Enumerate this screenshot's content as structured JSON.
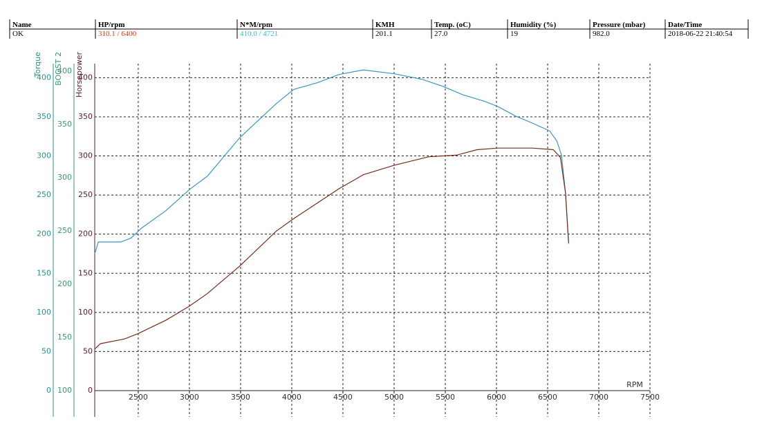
{
  "header": {
    "columns": [
      "Name",
      "HP/rpm",
      "N*M/rpm",
      "KMH",
      "Temp. (oC)",
      "Humidity (%)",
      "Pressure (mbar)",
      "Date/Time"
    ],
    "values": [
      "OK",
      "310.1 / 6400",
      "410.0 / 4721",
      "201.1",
      "27.0",
      "19",
      "982.0",
      "2018-06-22 21:40:54"
    ]
  },
  "chart_data": {
    "type": "line",
    "x_label": "RPM",
    "grid": true,
    "xlim": [
      2075,
      7500
    ],
    "xticks": [
      2500,
      3000,
      3500,
      4000,
      4500,
      5000,
      5500,
      6000,
      6500,
      7000,
      7500
    ],
    "y_axes": [
      {
        "title": "Torque",
        "color": "#2a8f8f",
        "ylim": [
          0,
          418
        ],
        "yticks": [
          0,
          50,
          100,
          150,
          200,
          250,
          300,
          350,
          400
        ]
      },
      {
        "title": "BOOST 2",
        "color": "#3a9a6a",
        "ylim": [
          100,
          407
        ],
        "yticks": [
          100,
          150,
          200,
          250,
          300,
          350,
          400
        ]
      },
      {
        "title": "Horsepower",
        "color": "#5a1a2a",
        "ylim": [
          0,
          418
        ],
        "yticks": [
          0,
          50,
          100,
          150,
          200,
          250,
          300,
          350,
          400
        ]
      }
    ],
    "series": [
      {
        "axis": 0,
        "color": "#3a95c8",
        "x": [
          2075,
          2110,
          2330,
          2430,
          2535,
          2770,
          3000,
          3175,
          3490,
          3850,
          4020,
          4260,
          4460,
          4700,
          5000,
          5270,
          5475,
          5675,
          5880,
          6015,
          6185,
          6350,
          6520,
          6590,
          6635,
          6675,
          6705
        ],
        "values": [
          175,
          190,
          190,
          195,
          208,
          230,
          257,
          274,
          323,
          367,
          385,
          394,
          404,
          410,
          405,
          398,
          389,
          378,
          370,
          363,
          351,
          342,
          332,
          319,
          301,
          252,
          190
        ]
      },
      {
        "axis": 2,
        "color": "#7a2a1a",
        "x": [
          2075,
          2130,
          2365,
          2500,
          2770,
          3000,
          3175,
          3490,
          3850,
          4020,
          4460,
          4700,
          5000,
          5340,
          5610,
          5810,
          6015,
          6350,
          6555,
          6625,
          6675,
          6705
        ],
        "values": [
          53,
          60,
          66,
          73,
          90,
          108,
          124,
          159,
          204,
          220,
          258,
          276,
          288,
          299,
          301,
          308,
          310,
          310,
          308,
          298,
          252,
          188
        ]
      }
    ]
  }
}
